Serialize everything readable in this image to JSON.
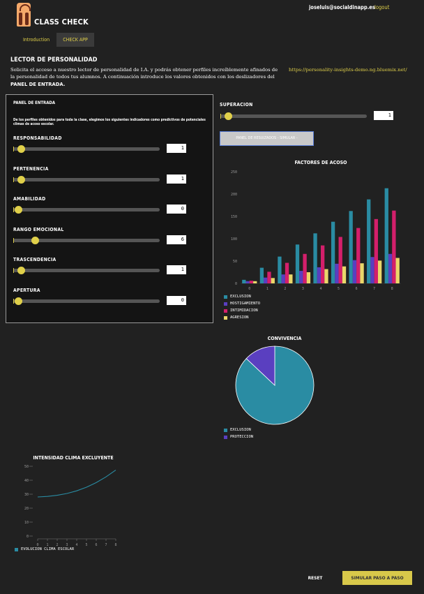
{
  "header": {
    "app_title": "CLASS CHECK",
    "user_email": "joseluis@socialdinapp.es",
    "logout_label": "logout",
    "tabs": [
      {
        "label": "Introduction",
        "active": false
      },
      {
        "label": "CHECK APP",
        "active": true
      }
    ]
  },
  "intro": {
    "section_title": "LECTOR DE PERSONALIDAD",
    "text": "Solicita el acceso a nuestro lector de personalidad de I.A. y podrás obtener perfiles increíblemente afinados de la personalidad de todos tus alumnos. A continuación introduce los valores obtenidos con los deslizadores del",
    "text_bold": "PANEL DE ENTRADA.",
    "link": "https://personality-insights-demo.ng.bluemix.net/"
  },
  "input_panel": {
    "title": "PANEL DE ENTRADA",
    "description": "De los perfiles obtenidos para toda la clase, elegimos los siguientes indicadores como predictivos de potenciales climas de acoso escolar.",
    "sliders": [
      {
        "label": "RESPONSABILIDAD",
        "value": 1,
        "min": 0,
        "max": 50
      },
      {
        "label": "PERTENENCIA",
        "value": 1,
        "min": 0,
        "max": 50
      },
      {
        "label": "AMABILIDAD",
        "value": 0,
        "min": 0,
        "max": 50
      },
      {
        "label": "RANGO EMOCIONAL",
        "value": 6,
        "min": 0,
        "max": 50
      },
      {
        "label": "TRASCENDENCIA",
        "value": 1,
        "min": 0,
        "max": 50
      },
      {
        "label": "APERTURA",
        "value": 0,
        "min": 0,
        "max": 50
      }
    ]
  },
  "superacion": {
    "label": "SUPERACION",
    "value": 1,
    "min": 0,
    "max": 50
  },
  "simulate_button_label": "PANEL DE RESULTADOS - SIMULAR -",
  "colors": {
    "accent": "#e0d04a",
    "exclusion": "#2a8ca3",
    "hostigamiento": "#5a3fc0",
    "intimidacion": "#d41f6b",
    "agresion": "#ead76a"
  },
  "chart_data": [
    {
      "type": "bar",
      "title": "FACTORES DE ACOSO",
      "categories": [
        "0",
        "1",
        "2",
        "3",
        "4",
        "5",
        "6",
        "7",
        "8"
      ],
      "ylim": [
        0,
        250
      ],
      "yticks": [
        "0",
        "50",
        "100",
        "150",
        "200",
        "250"
      ],
      "series": [
        {
          "name": "EXCLUSION",
          "values": [
            8,
            35,
            60,
            87,
            112,
            138,
            162,
            188,
            213
          ]
        },
        {
          "name": "HOSTIGAMIENTO",
          "values": [
            5,
            13,
            20,
            28,
            36,
            44,
            52,
            59,
            66
          ]
        },
        {
          "name": "INTIMIDACION",
          "values": [
            6,
            26,
            46,
            66,
            85,
            104,
            124,
            144,
            163
          ]
        },
        {
          "name": "AGRESION",
          "values": [
            5,
            12,
            20,
            25,
            32,
            38,
            45,
            51,
            57
          ]
        }
      ]
    },
    {
      "type": "pie",
      "title": "CONVIVENCIA",
      "series": [
        {
          "name": "EXCLUSION",
          "value": 87
        },
        {
          "name": "PROTECCION",
          "value": 13
        }
      ]
    },
    {
      "type": "line",
      "title": "INTENSIDAD CLIMA EXCLUYENTE",
      "x": [
        "0",
        "1",
        "2",
        "3",
        "4",
        "5",
        "6",
        "7",
        "8"
      ],
      "ylim": [
        0,
        50
      ],
      "yticks": [
        "0",
        "10",
        "20",
        "30",
        "40",
        "50"
      ],
      "series": [
        {
          "name": "EVOLUCION CLIMA ESCOLAR",
          "values": [
            28,
            28.4,
            29.2,
            30.5,
            32.4,
            35,
            38.3,
            42.4,
            47.3
          ]
        }
      ]
    }
  ],
  "footer": {
    "reset_label": "RESET",
    "step_label": "SIMULAR PASO A PASO"
  }
}
